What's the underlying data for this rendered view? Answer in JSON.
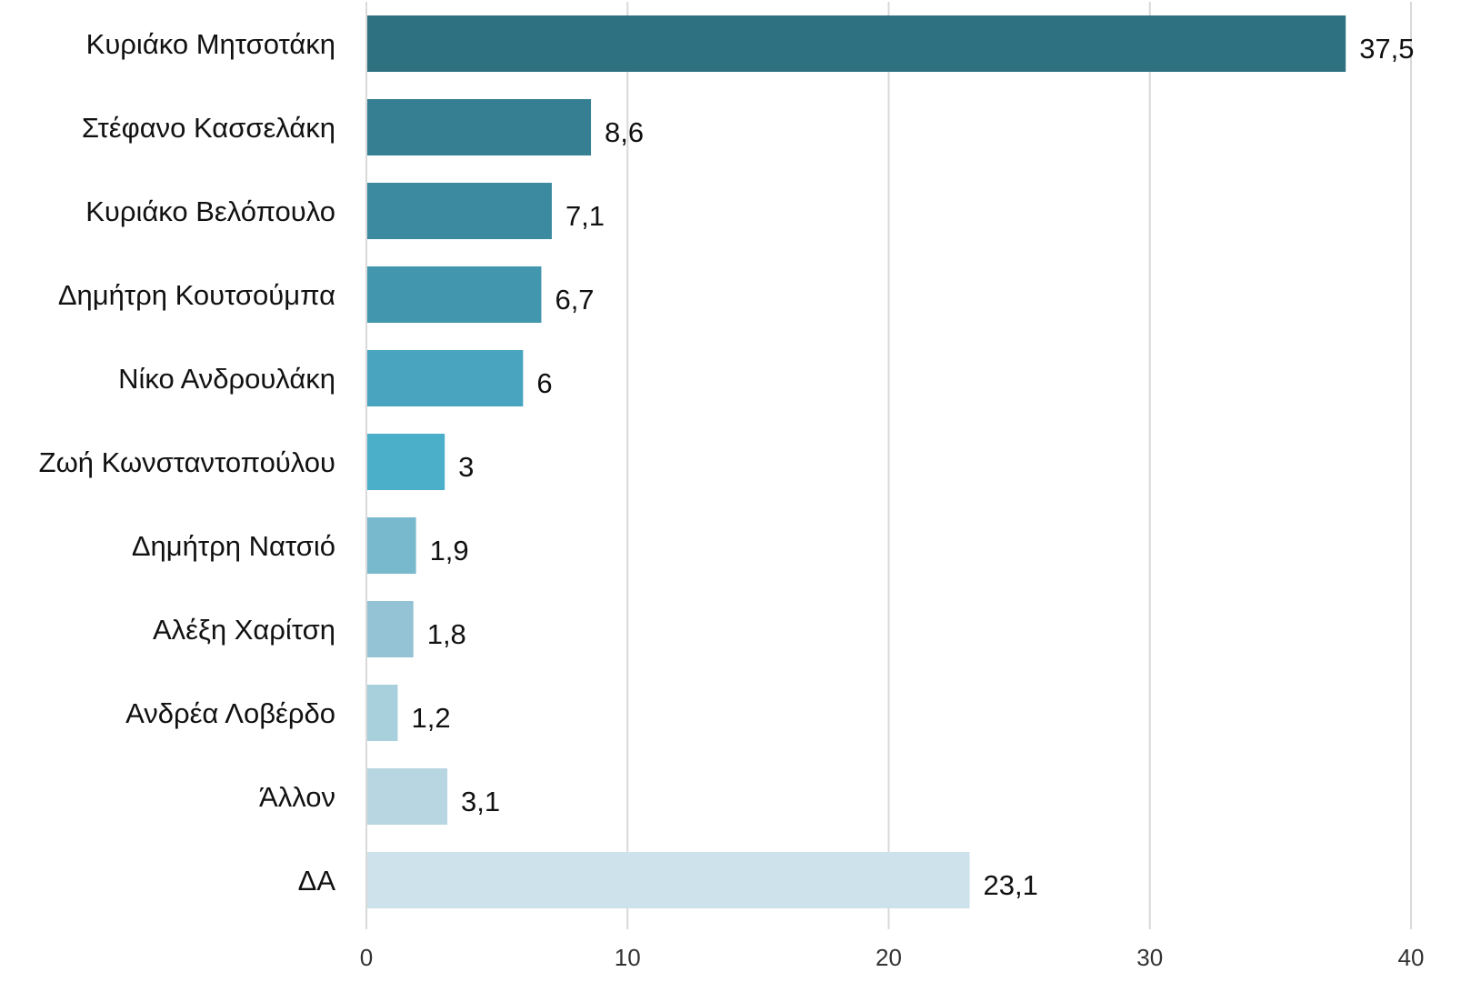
{
  "chart_data": {
    "type": "bar",
    "orientation": "horizontal",
    "title": "",
    "xlabel": "",
    "ylabel": "",
    "categories": [
      "Κυριάκο Μητσοτάκη",
      "Στέφανο Κασσελάκη",
      "Κυριάκο Βελόπουλο",
      "Δημήτρη Κουτσούμπα",
      "Νίκο Ανδρουλάκη",
      "Ζωή Κωνσταντοπούλου",
      "Δημήτρη Νατσιό",
      "Αλέξη Χαρίτση",
      "Ανδρέα Λοβέρδο",
      "Άλλον",
      "ΔΑ"
    ],
    "values": [
      37.5,
      8.6,
      7.1,
      6.7,
      6,
      3,
      1.9,
      1.8,
      1.2,
      3.1,
      23.1
    ],
    "value_labels": [
      "37,5",
      "8,6",
      "7,1",
      "6,7",
      "6",
      "3",
      "1,9",
      "1,8",
      "1,2",
      "3,1",
      "23,1"
    ],
    "bar_colors": [
      "#2e7282",
      "#367f93",
      "#3b8aa0",
      "#4297ae",
      "#48a4bf",
      "#4bafc9",
      "#78b9ce",
      "#93c3d5",
      "#a8cfdc",
      "#b8d6e2",
      "#cde2ea"
    ],
    "xlim": [
      0,
      40
    ],
    "xticks": [
      0,
      10,
      20,
      30,
      40
    ],
    "xtick_labels": [
      "0",
      "10",
      "20",
      "30",
      "40"
    ],
    "grid": true,
    "legend": "none"
  }
}
